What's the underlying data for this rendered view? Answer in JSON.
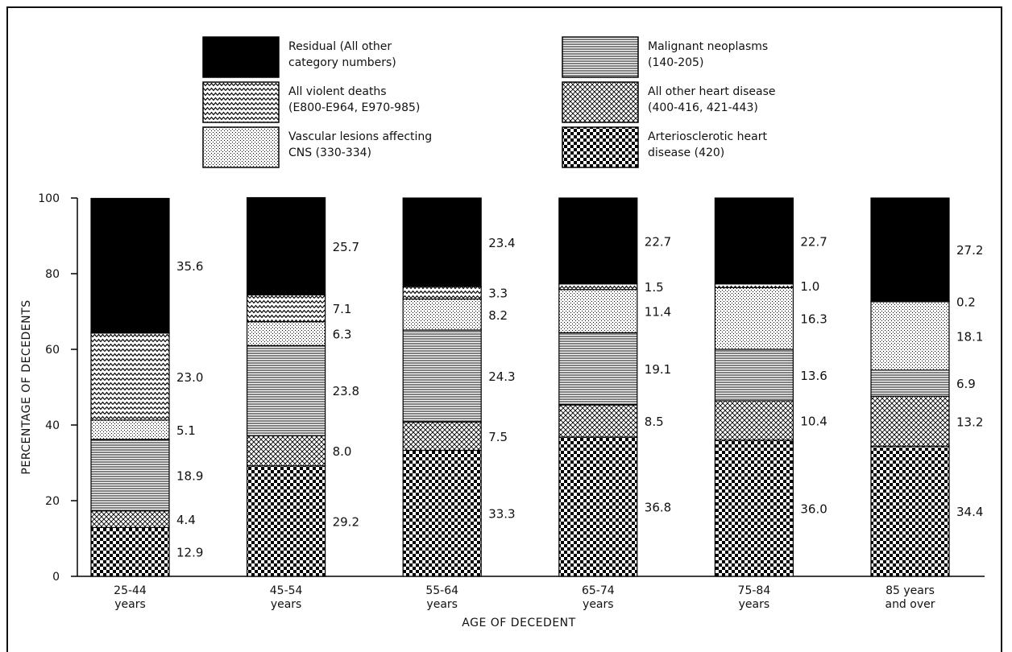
{
  "chart_data": {
    "type": "bar",
    "stacked": true,
    "xlabel": "AGE OF DECEDENT",
    "ylabel": "PERCENTAGE OF DECEDENTS",
    "ylim": [
      0,
      100
    ],
    "yticks": [
      "0",
      "20",
      "40",
      "60",
      "80",
      "100"
    ],
    "categories": [
      [
        "25-44",
        "years"
      ],
      [
        "45-54",
        "years"
      ],
      [
        "55-64",
        "years"
      ],
      [
        "65-74",
        "years"
      ],
      [
        "75-84",
        "years"
      ],
      [
        "85 years",
        "and over"
      ]
    ],
    "series": [
      {
        "key": "ashd",
        "name": [
          "Arteriosclerotic heart",
          "disease (420)"
        ],
        "pattern": "checker",
        "values": [
          12.9,
          29.2,
          33.3,
          36.8,
          36.0,
          34.4
        ],
        "labels": [
          "12.9",
          "29.2",
          "33.3",
          "36.8",
          "36.0",
          "34.4"
        ]
      },
      {
        "key": "otherheart",
        "name": [
          "All other heart disease",
          "(400-416, 421-443)"
        ],
        "pattern": "crosshatch",
        "values": [
          4.4,
          8.0,
          7.5,
          8.5,
          10.4,
          13.2
        ],
        "labels": [
          "4.4",
          "8.0",
          "7.5",
          "8.5",
          "10.4",
          "13.2"
        ]
      },
      {
        "key": "malignant",
        "name": [
          "Malignant neoplasms",
          "(140-205)"
        ],
        "pattern": "hlines",
        "values": [
          18.9,
          23.8,
          24.3,
          19.1,
          13.6,
          6.9
        ],
        "labels": [
          "18.9",
          "23.8",
          "24.3",
          "19.1",
          "13.6",
          "6.9"
        ]
      },
      {
        "key": "vascular",
        "name": [
          "Vascular lesions affecting",
          "CNS (330-334)"
        ],
        "pattern": "dots",
        "values": [
          5.1,
          6.3,
          8.2,
          11.4,
          16.3,
          18.1
        ],
        "labels": [
          "5.1",
          "6.3",
          "8.2",
          "11.4",
          "16.3",
          "18.1"
        ]
      },
      {
        "key": "violent",
        "name": [
          "All violent deaths",
          "(E800-E964, E970-985)"
        ],
        "pattern": "zigzag",
        "values": [
          23.0,
          7.1,
          3.3,
          1.5,
          1.0,
          0.2
        ],
        "labels": [
          "23.0",
          "7.1",
          "3.3",
          "1.5",
          "1.0",
          "0.2"
        ]
      },
      {
        "key": "residual",
        "name": [
          "Residual  (All other",
          "category numbers)"
        ],
        "pattern": "solid",
        "values": [
          35.6,
          25.7,
          23.4,
          22.7,
          22.7,
          27.2
        ],
        "labels": [
          "35.6",
          "25.7",
          "23.4",
          "22.7",
          "22.7",
          "27.2"
        ]
      }
    ],
    "legend_order": [
      "residual",
      "malignant",
      "violent",
      "otherheart",
      "vascular",
      "ashd"
    ],
    "legend_placement": "top",
    "grid": false
  }
}
